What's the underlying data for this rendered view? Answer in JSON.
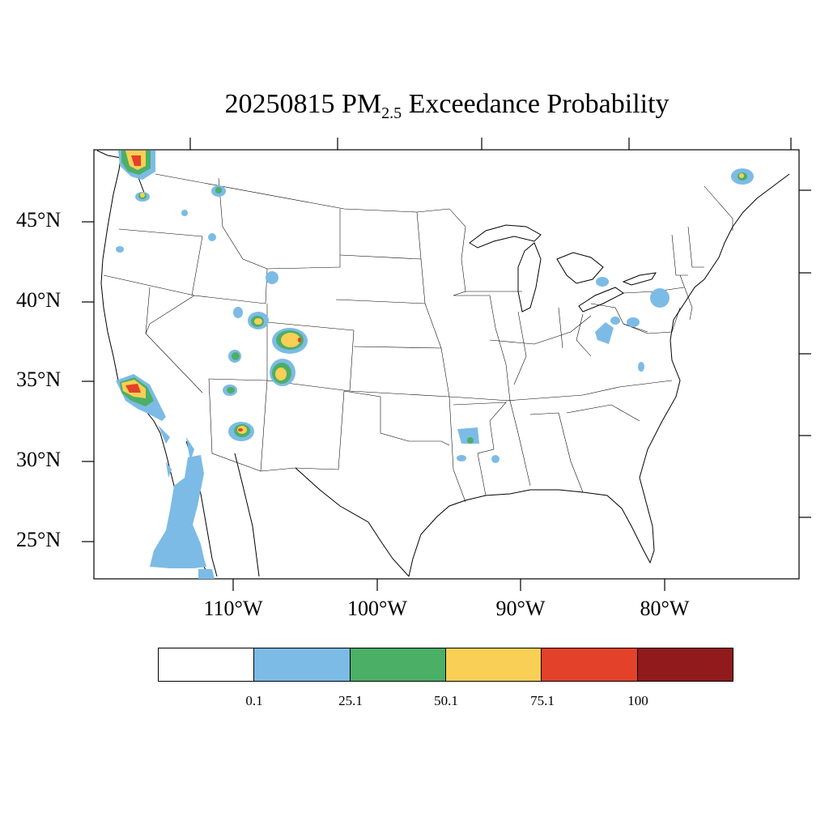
{
  "title": {
    "date": "20250815",
    "species": "PM",
    "subscript": "2.5",
    "rest": "Exceedance Probability"
  },
  "map": {
    "lat_labels": [
      "45°N",
      "40°N",
      "35°N",
      "30°N",
      "25°N"
    ],
    "lon_labels": [
      "110°W",
      "100°W",
      "90°W",
      "80°W"
    ],
    "region": "Continental United States"
  },
  "colorbar": {
    "colors": [
      "#ffffff",
      "#7cbbe6",
      "#4caf66",
      "#f9cf55",
      "#e34129",
      "#911a1c"
    ],
    "labels": [
      "0.1",
      "25.1",
      "50.1",
      "75.1",
      "100"
    ]
  }
}
